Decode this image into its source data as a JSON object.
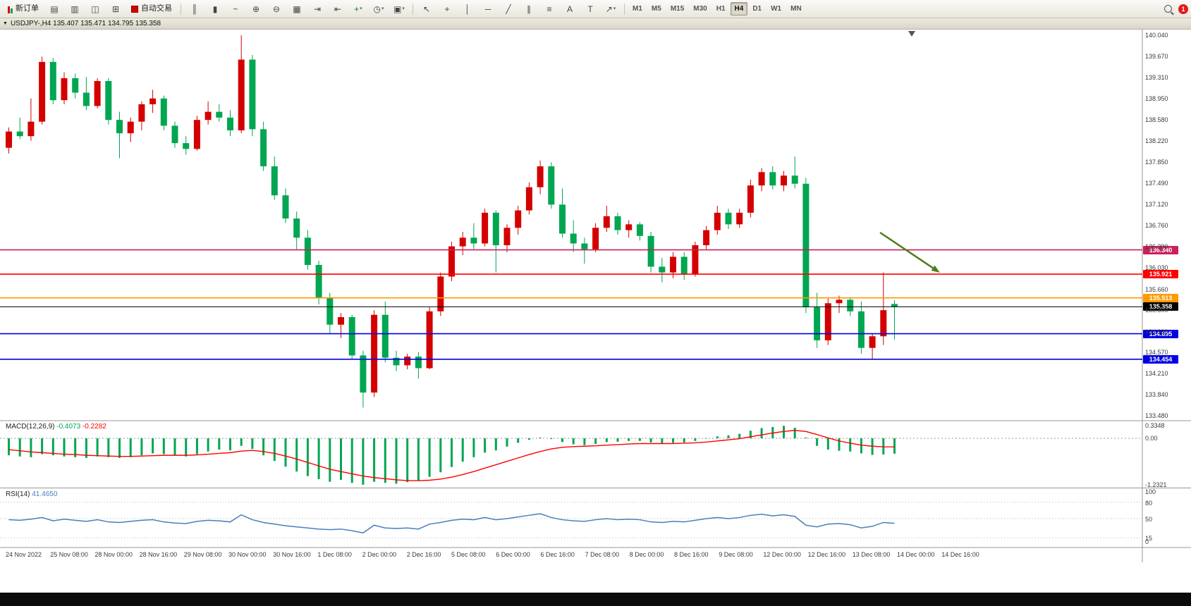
{
  "toolbar": {
    "new_order": {
      "label": "新订单"
    },
    "auto_trading": {
      "label": "自动交易"
    },
    "icon_group_1": [
      {
        "name": "profiles-icon",
        "glyph": "▤"
      },
      {
        "name": "market-watch-icon",
        "glyph": "▥"
      },
      {
        "name": "data-window-icon",
        "glyph": "◫"
      },
      {
        "name": "navigator-icon",
        "glyph": "⊞"
      }
    ],
    "icon_group_2": [
      {
        "name": "bar-chart-icon",
        "glyph": "║"
      },
      {
        "name": "candlestick-chart-icon",
        "glyph": "▮"
      },
      {
        "name": "line-chart-icon",
        "glyph": "~"
      },
      {
        "name": "zoom-in-icon",
        "glyph": "⊕"
      },
      {
        "name": "zoom-out-icon",
        "glyph": "⊖"
      },
      {
        "name": "tile-windows-icon",
        "glyph": "▦"
      },
      {
        "name": "auto-scroll-icon",
        "glyph": "⇥"
      },
      {
        "name": "chart-shift-icon",
        "glyph": "⇤"
      },
      {
        "name": "indicators-icon",
        "glyph": "+",
        "color": "#0a8a0a",
        "dropdown": true
      },
      {
        "name": "periods-icon",
        "glyph": "◷",
        "dropdown": true
      },
      {
        "name": "templates-icon",
        "glyph": "▣",
        "dropdown": true
      }
    ],
    "line_tools": [
      {
        "name": "cursor-icon",
        "glyph": "↖"
      },
      {
        "name": "crosshair-icon",
        "glyph": "+"
      },
      {
        "name": "vertical-line-icon",
        "glyph": "│"
      },
      {
        "name": "horizontal-line-icon",
        "glyph": "─"
      },
      {
        "name": "trendline-icon",
        "glyph": "╱"
      },
      {
        "name": "channel-icon",
        "glyph": "∥"
      },
      {
        "name": "fibonacci-icon",
        "glyph": "≡"
      },
      {
        "name": "text-icon",
        "glyph": "A"
      },
      {
        "name": "label-icon",
        "glyph": "T"
      },
      {
        "name": "arrows-icon",
        "glyph": "↗",
        "dropdown": true
      }
    ],
    "timeframes": [
      "M1",
      "M5",
      "M15",
      "M30",
      "H1",
      "H4",
      "D1",
      "W1",
      "MN"
    ],
    "active_timeframe": "H4",
    "notification_count": "1"
  },
  "chart": {
    "title": "USDJPY-,H4 135.407 135.471 134.795 135.358",
    "symbol": "USDJPY-",
    "period": "H4",
    "price_axis_labels": [
      "140.040",
      "139.670",
      "139.310",
      "138.950",
      "138.580",
      "138.220",
      "137.850",
      "137.490",
      "137.120",
      "136.760",
      "136.390",
      "136.030",
      "135.660",
      "135.300",
      "134.930",
      "134.570",
      "134.210",
      "133.840",
      "133.480"
    ],
    "time_axis_labels": [
      "24 Nov 2022",
      "25 Nov 08:00",
      "28 Nov 00:00",
      "28 Nov 16:00",
      "29 Nov 08:00",
      "30 Nov 00:00",
      "30 Nov 16:00",
      "1 Dec 08:00",
      "2 Dec 00:00",
      "2 Dec 16:00",
      "5 Dec 08:00",
      "6 Dec 00:00",
      "6 Dec 16:00",
      "7 Dec 08:00",
      "8 Dec 00:00",
      "8 Dec 16:00",
      "9 Dec 08:00",
      "12 Dec 00:00",
      "12 Dec 16:00",
      "13 Dec 08:00",
      "14 Dec 00:00",
      "14 Dec 16:00"
    ],
    "horizontal_lines": [
      {
        "price": 136.34,
        "label": "136.340",
        "color": "#c9205e"
      },
      {
        "price": 135.921,
        "label": "135.921",
        "color": "#ff0000"
      },
      {
        "price": 135.513,
        "label": "135.513",
        "color": "#ff9900"
      },
      {
        "price": 135.358,
        "label": "135.358",
        "color": "#000000"
      },
      {
        "price": 134.895,
        "label": "134.895",
        "color": "#0000e0"
      },
      {
        "price": 134.454,
        "label": "134.454",
        "color": "#0000e0"
      }
    ],
    "annotation_arrow": {
      "from": [
        1248,
        330
      ],
      "to": [
        1333,
        387
      ],
      "color": "#4e7d1e"
    }
  },
  "chart_data": {
    "type": "candlestick",
    "symbol": "USDJPY-",
    "period": "H4",
    "last_bar": {
      "open": 135.407,
      "high": 135.471,
      "low": 134.795,
      "close": 135.358
    },
    "price_range": [
      133.48,
      140.04
    ],
    "up_color": "#d40000",
    "down_color": "#00a651",
    "candles": [
      [
        138.1,
        138.45,
        138.0,
        138.38
      ],
      [
        138.38,
        138.62,
        138.25,
        138.3
      ],
      [
        138.3,
        138.95,
        138.22,
        138.55
      ],
      [
        138.55,
        139.67,
        138.5,
        139.58
      ],
      [
        139.58,
        139.65,
        138.85,
        138.92
      ],
      [
        138.92,
        139.4,
        138.85,
        139.3
      ],
      [
        139.3,
        139.38,
        138.95,
        139.05
      ],
      [
        139.05,
        139.32,
        138.75,
        138.82
      ],
      [
        138.82,
        139.3,
        138.78,
        139.25
      ],
      [
        139.25,
        139.3,
        138.5,
        138.58
      ],
      [
        138.58,
        138.72,
        137.92,
        138.35
      ],
      [
        138.35,
        138.62,
        138.2,
        138.55
      ],
      [
        138.55,
        138.9,
        138.4,
        138.85
      ],
      [
        138.85,
        139.1,
        138.7,
        138.95
      ],
      [
        138.95,
        139.0,
        138.4,
        138.48
      ],
      [
        138.48,
        138.55,
        138.1,
        138.18
      ],
      [
        138.18,
        138.3,
        137.98,
        138.08
      ],
      [
        138.08,
        138.65,
        138.05,
        138.58
      ],
      [
        138.58,
        138.9,
        138.5,
        138.72
      ],
      [
        138.72,
        138.85,
        138.55,
        138.62
      ],
      [
        138.62,
        138.75,
        138.3,
        138.4
      ],
      [
        138.4,
        140.04,
        138.35,
        139.62
      ],
      [
        139.62,
        139.7,
        138.3,
        138.42
      ],
      [
        138.42,
        138.55,
        137.7,
        137.78
      ],
      [
        137.78,
        137.95,
        137.2,
        137.28
      ],
      [
        137.28,
        137.4,
        136.8,
        136.88
      ],
      [
        136.88,
        137.0,
        136.35,
        136.55
      ],
      [
        136.55,
        136.68,
        136.0,
        136.08
      ],
      [
        136.08,
        136.15,
        135.4,
        135.52
      ],
      [
        135.52,
        135.6,
        134.9,
        135.05
      ],
      [
        135.05,
        135.25,
        134.82,
        135.18
      ],
      [
        135.18,
        135.22,
        134.45,
        134.52
      ],
      [
        134.52,
        134.6,
        133.62,
        133.88
      ],
      [
        133.88,
        135.3,
        133.8,
        135.22
      ],
      [
        135.22,
        135.45,
        134.4,
        134.48
      ],
      [
        134.48,
        134.6,
        134.25,
        134.35
      ],
      [
        134.35,
        134.55,
        134.28,
        134.5
      ],
      [
        134.5,
        134.58,
        134.12,
        134.3
      ],
      [
        134.3,
        135.35,
        134.28,
        135.28
      ],
      [
        135.28,
        135.95,
        135.2,
        135.88
      ],
      [
        135.88,
        136.48,
        135.8,
        136.4
      ],
      [
        136.4,
        136.65,
        136.25,
        136.55
      ],
      [
        136.55,
        136.8,
        136.35,
        136.45
      ],
      [
        136.45,
        137.05,
        136.4,
        136.98
      ],
      [
        136.98,
        137.02,
        135.95,
        136.42
      ],
      [
        136.42,
        136.78,
        136.3,
        136.72
      ],
      [
        136.72,
        137.1,
        136.6,
        137.02
      ],
      [
        137.02,
        137.5,
        136.95,
        137.42
      ],
      [
        137.42,
        137.88,
        137.3,
        137.78
      ],
      [
        137.78,
        137.85,
        137.05,
        137.12
      ],
      [
        137.12,
        137.4,
        136.55,
        136.62
      ],
      [
        136.62,
        136.85,
        136.3,
        136.45
      ],
      [
        136.45,
        136.55,
        136.1,
        136.35
      ],
      [
        136.35,
        136.8,
        136.3,
        136.72
      ],
      [
        136.72,
        137.1,
        136.65,
        136.92
      ],
      [
        136.92,
        136.98,
        136.6,
        136.68
      ],
      [
        136.68,
        136.85,
        136.55,
        136.78
      ],
      [
        136.78,
        136.82,
        136.5,
        136.58
      ],
      [
        136.58,
        136.65,
        135.95,
        136.05
      ],
      [
        136.05,
        136.2,
        135.78,
        135.95
      ],
      [
        135.95,
        136.3,
        135.85,
        136.22
      ],
      [
        136.22,
        136.3,
        135.82,
        135.92
      ],
      [
        135.92,
        136.48,
        135.88,
        136.42
      ],
      [
        136.42,
        136.75,
        136.35,
        136.68
      ],
      [
        136.68,
        137.1,
        136.6,
        136.98
      ],
      [
        136.98,
        137.05,
        136.7,
        136.78
      ],
      [
        136.78,
        137.05,
        136.72,
        136.98
      ],
      [
        136.98,
        137.55,
        136.9,
        137.45
      ],
      [
        137.45,
        137.75,
        137.35,
        137.68
      ],
      [
        137.68,
        137.78,
        137.38,
        137.45
      ],
      [
        137.45,
        137.7,
        137.35,
        137.62
      ],
      [
        137.62,
        137.95,
        137.4,
        137.48
      ],
      [
        137.48,
        137.58,
        135.25,
        135.35
      ],
      [
        135.35,
        135.6,
        134.65,
        134.78
      ],
      [
        134.78,
        135.5,
        134.7,
        135.42
      ],
      [
        135.42,
        135.55,
        135.25,
        135.48
      ],
      [
        135.48,
        135.52,
        135.2,
        135.28
      ],
      [
        135.28,
        135.45,
        134.55,
        134.65
      ],
      [
        134.65,
        134.9,
        134.45,
        134.85
      ],
      [
        134.85,
        135.95,
        134.7,
        135.3
      ],
      [
        135.407,
        135.471,
        134.795,
        135.358
      ]
    ]
  },
  "macd": {
    "name": "MACD(12,26,9)",
    "main_value": "-0.4073",
    "signal_value": "-0.2282",
    "axis_labels": [
      "0.3348",
      "0.00",
      "-1.2321"
    ],
    "hist_color": "#00a651",
    "signal_color": "#ff0000",
    "histogram": [
      -0.45,
      -0.48,
      -0.5,
      -0.42,
      -0.45,
      -0.48,
      -0.5,
      -0.52,
      -0.48,
      -0.5,
      -0.52,
      -0.5,
      -0.45,
      -0.4,
      -0.42,
      -0.45,
      -0.48,
      -0.42,
      -0.35,
      -0.3,
      -0.32,
      -0.2,
      -0.28,
      -0.45,
      -0.6,
      -0.75,
      -0.88,
      -1.0,
      -1.08,
      -1.15,
      -1.1,
      -1.18,
      -1.23,
      -1.15,
      -1.18,
      -1.2,
      -1.16,
      -1.12,
      -1.02,
      -0.9,
      -0.76,
      -0.62,
      -0.5,
      -0.38,
      -0.32,
      -0.22,
      -0.12,
      -0.04,
      0.02,
      -0.02,
      -0.1,
      -0.16,
      -0.18,
      -0.15,
      -0.1,
      -0.09,
      -0.07,
      -0.07,
      -0.11,
      -0.14,
      -0.12,
      -0.11,
      -0.07,
      -0.01,
      0.05,
      0.08,
      0.12,
      0.2,
      0.27,
      0.3,
      0.33,
      0.28,
      0.02,
      -0.2,
      -0.3,
      -0.33,
      -0.35,
      -0.4,
      -0.44,
      -0.43,
      -0.4073
    ],
    "signal": [
      -0.3,
      -0.33,
      -0.36,
      -0.38,
      -0.4,
      -0.42,
      -0.43,
      -0.45,
      -0.46,
      -0.47,
      -0.48,
      -0.48,
      -0.47,
      -0.46,
      -0.45,
      -0.45,
      -0.45,
      -0.44,
      -0.42,
      -0.4,
      -0.38,
      -0.34,
      -0.32,
      -0.35,
      -0.4,
      -0.47,
      -0.55,
      -0.64,
      -0.73,
      -0.82,
      -0.88,
      -0.94,
      -1.0,
      -1.04,
      -1.07,
      -1.1,
      -1.12,
      -1.12,
      -1.11,
      -1.08,
      -1.03,
      -0.96,
      -0.88,
      -0.79,
      -0.7,
      -0.61,
      -0.52,
      -0.43,
      -0.35,
      -0.28,
      -0.24,
      -0.22,
      -0.21,
      -0.2,
      -0.18,
      -0.17,
      -0.15,
      -0.14,
      -0.14,
      -0.14,
      -0.14,
      -0.13,
      -0.12,
      -0.1,
      -0.07,
      -0.04,
      -0.01,
      0.04,
      0.09,
      0.14,
      0.18,
      0.21,
      0.18,
      0.1,
      0.01,
      -0.07,
      -0.13,
      -0.18,
      -0.21,
      -0.225,
      -0.2282
    ]
  },
  "rsi": {
    "name": "RSI(14)",
    "value": "41.4650",
    "axis_labels": [
      "100",
      "80",
      "50",
      "15",
      "0"
    ],
    "levels": [
      80,
      50,
      15
    ],
    "line_color": "#4a7ebb",
    "values": [
      48,
      47,
      49,
      52,
      46,
      49,
      47,
      45,
      48,
      44,
      43,
      45,
      47,
      48,
      44,
      42,
      41,
      45,
      47,
      46,
      44,
      57,
      48,
      43,
      40,
      37,
      35,
      33,
      31,
      30,
      31,
      28,
      24,
      38,
      33,
      32,
      33,
      31,
      40,
      43,
      47,
      49,
      48,
      52,
      48,
      50,
      53,
      56,
      59,
      52,
      48,
      46,
      45,
      48,
      50,
      48,
      49,
      48,
      44,
      43,
      45,
      44,
      47,
      50,
      52,
      50,
      52,
      56,
      58,
      55,
      57,
      54,
      38,
      35,
      40,
      41,
      39,
      33,
      36,
      43,
      41.465
    ]
  }
}
